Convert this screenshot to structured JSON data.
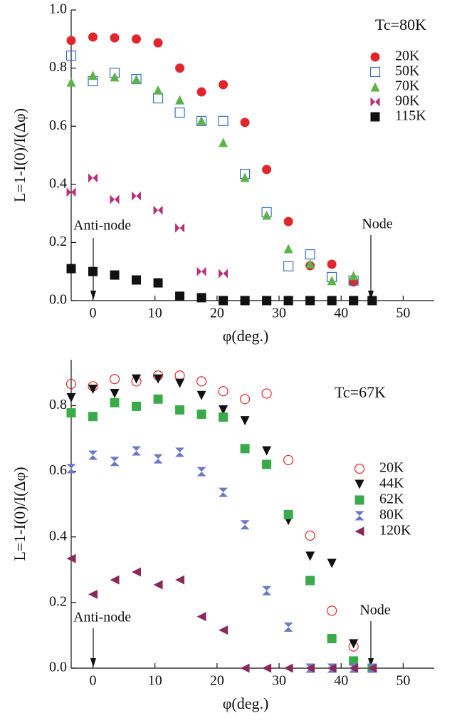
{
  "chart_data": [
    {
      "type": "scatter",
      "title": "Tc=80K",
      "x_label": "φ(deg.)",
      "y_label": "L=1-I(0)/I(Δφ)",
      "annotations": [
        "Anti-node",
        "Node"
      ],
      "x": [
        -3.5,
        0,
        3.5,
        7,
        10.5,
        14,
        17.5,
        21,
        24.5,
        28,
        31.5,
        35,
        38.5,
        42,
        45
      ],
      "xlim": [
        -3.5,
        55
      ],
      "xticks": [
        0,
        10,
        20,
        30,
        40,
        50
      ],
      "ylim": [
        0,
        1.0
      ],
      "yticks": [
        {
          "value": 0,
          "label": "0.0"
        },
        0.2,
        0.4,
        0.6,
        0.8,
        {
          "value": 1,
          "label": "1.0"
        }
      ],
      "series": [
        {
          "name": "20K",
          "color": "#e0262a",
          "marker": "circle",
          "values": [
            0.895,
            0.907,
            0.904,
            0.9,
            0.887,
            0.8,
            0.718,
            0.743,
            0.613,
            0.451,
            0.272,
            0.12,
            0.125,
            0.064,
            null
          ]
        },
        {
          "name": "50K",
          "color": "#3a6fc4",
          "marker": "square-open",
          "values": [
            0.843,
            0.755,
            0.784,
            0.762,
            0.696,
            0.647,
            0.618,
            0.618,
            0.436,
            0.304,
            0.118,
            0.159,
            0.081,
            0.069,
            null
          ]
        },
        {
          "name": "70K",
          "color": "#5db34a",
          "marker": "triangle-up",
          "values": [
            0.752,
            0.775,
            0.77,
            0.762,
            0.725,
            0.691,
            0.62,
            0.544,
            0.424,
            0.294,
            0.179,
            0.127,
            0.069,
            0.086,
            null
          ]
        },
        {
          "name": "90K",
          "color": "#b8307a",
          "marker": "bowtie",
          "values": [
            0.373,
            0.422,
            0.348,
            0.36,
            0.311,
            0.25,
            0.1,
            0.093,
            0,
            0,
            0,
            0,
            0,
            0,
            0
          ]
        },
        {
          "name": "115K",
          "color": "#111111",
          "marker": "square",
          "values": [
            0.11,
            0.1,
            0.088,
            0.071,
            0.061,
            0.015,
            0.01,
            0,
            0,
            0,
            0,
            0,
            0,
            0,
            0
          ]
        }
      ]
    },
    {
      "type": "scatter",
      "title": "Tc=67K",
      "x_label": "φ(deg.)",
      "y_label": "L=1-I(0)/I(Δφ)",
      "annotations": [
        "Anti-node",
        "Node"
      ],
      "x": [
        -3.5,
        0,
        3.5,
        7,
        10.5,
        14,
        17.5,
        21,
        24.5,
        28,
        31.5,
        35,
        38.5,
        42,
        45
      ],
      "xlim": [
        -3.5,
        55
      ],
      "xticks": [
        0,
        10,
        20,
        30,
        40,
        50
      ],
      "ylim": [
        0,
        0.94
      ],
      "yticks": [
        {
          "value": 0,
          "label": "0.0"
        },
        0.2,
        0.4,
        0.6,
        0.8
      ],
      "series": [
        {
          "name": "20K",
          "color": "#e0262a",
          "marker": "circle-open",
          "values": [
            0.866,
            0.859,
            0.881,
            0.874,
            0.892,
            0.892,
            0.874,
            0.844,
            0.82,
            0.837,
            0.634,
            0.404,
            0.175,
            0.066,
            null
          ]
        },
        {
          "name": "44K",
          "color": "#111111",
          "marker": "triangle-down",
          "values": [
            0.824,
            0.85,
            0.837,
            0.881,
            0.881,
            0.868,
            0.831,
            0.787,
            0.754,
            0.662,
            0.45,
            0.341,
            0.319,
            0.074,
            0
          ]
        },
        {
          "name": "62K",
          "color": "#3aaa4a",
          "marker": "square",
          "values": [
            0.778,
            0.767,
            0.809,
            0.798,
            0.82,
            0.787,
            0.774,
            0.765,
            0.669,
            0.621,
            0.468,
            0.267,
            0.09,
            0.022,
            0
          ]
        },
        {
          "name": "80K",
          "color": "#6a7ac4",
          "marker": "hourglass",
          "values": [
            0.608,
            0.649,
            0.63,
            0.662,
            0.638,
            0.658,
            0.599,
            0.536,
            0.437,
            0.236,
            0.125,
            0,
            0,
            0,
            0
          ]
        },
        {
          "name": "120K",
          "color": "#8a2a5a",
          "marker": "triangle-left",
          "values": [
            0.334,
            0.225,
            0.269,
            0.293,
            0.254,
            0.269,
            0.157,
            0.116,
            0,
            0,
            0,
            0,
            0,
            0,
            0
          ]
        }
      ]
    }
  ]
}
